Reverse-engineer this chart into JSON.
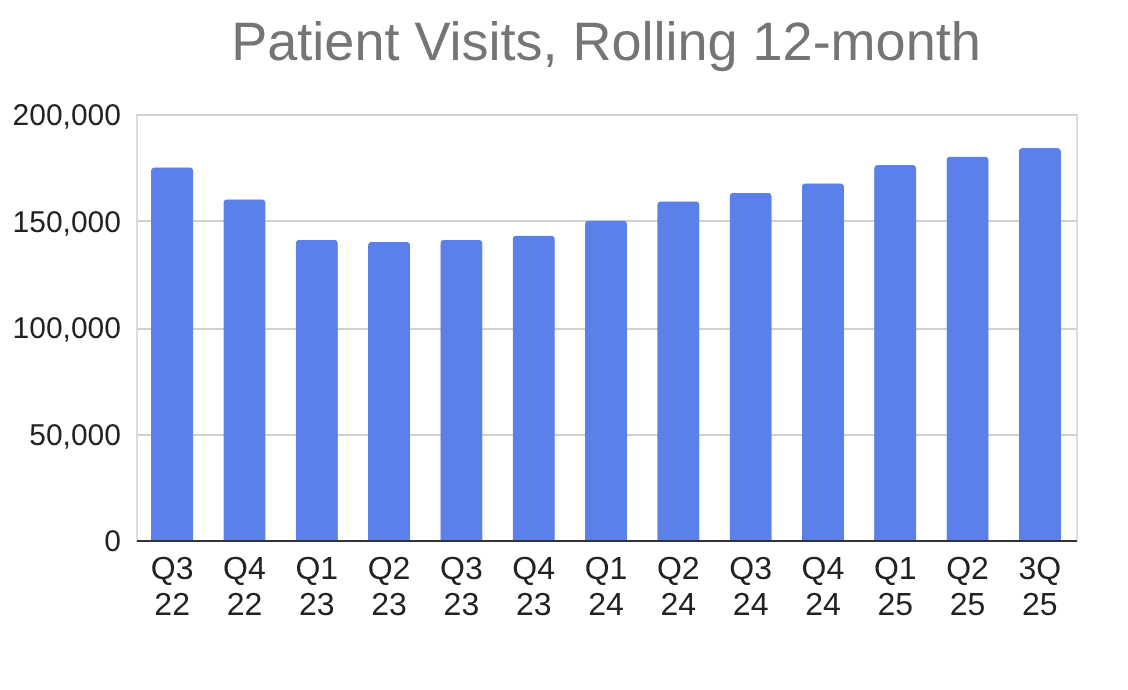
{
  "chart_data": {
    "type": "bar",
    "title": "Patient Visits, Rolling 12-month",
    "categories": [
      "Q3 22",
      "Q4 22",
      "Q1 23",
      "Q2 23",
      "Q3 23",
      "Q4 23",
      "Q1 24",
      "Q2 24",
      "Q3 24",
      "Q4 24",
      "Q1 25",
      "Q2 25",
      "3Q 25"
    ],
    "values": [
      175000,
      160000,
      141000,
      140000,
      141000,
      143000,
      150000,
      159000,
      163000,
      167500,
      176000,
      180000,
      184000
    ],
    "color": "#5b80ea",
    "ylim": [
      0,
      200000
    ],
    "yticks": [
      {
        "value": 0,
        "label": "0"
      },
      {
        "value": 50000,
        "label": "50,000"
      },
      {
        "value": 100000,
        "label": "100,000"
      },
      {
        "value": 150000,
        "label": "150,000"
      },
      {
        "value": 200000,
        "label": "200,000"
      }
    ],
    "grid": "y"
  }
}
